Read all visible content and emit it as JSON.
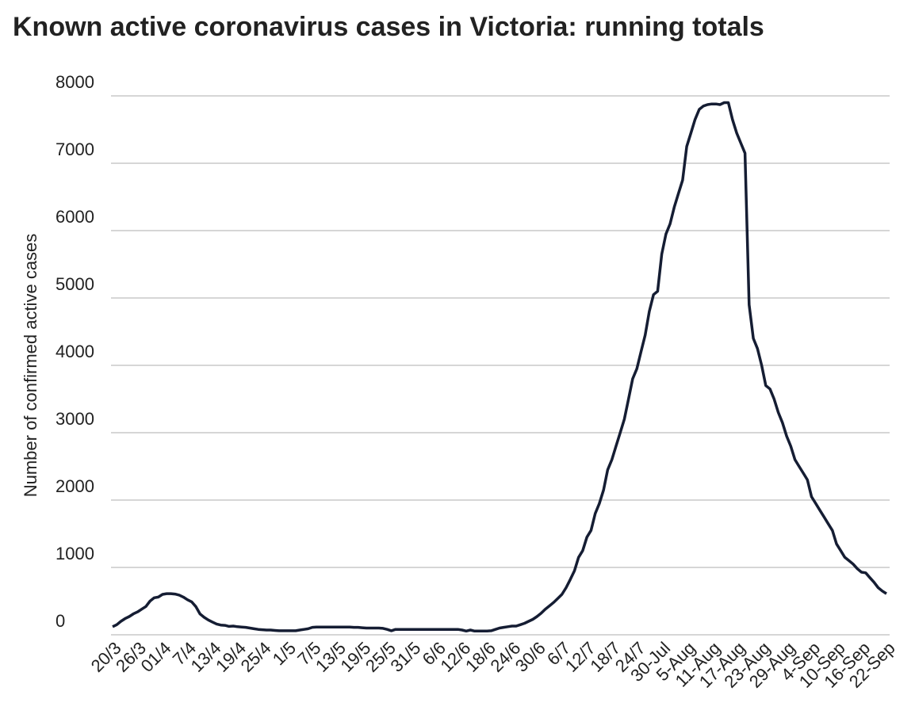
{
  "chart_data": {
    "type": "line",
    "title": "Known active coronavirus cases in Victoria: running totals",
    "y_label": "Number of confirmed active cases",
    "color": "#151d33",
    "grid": true,
    "ylim": [
      0,
      8000
    ],
    "yticks": [
      0,
      1000,
      2000,
      3000,
      4000,
      5000,
      6000,
      7000,
      8000
    ],
    "categories": [
      "20/3",
      null,
      null,
      null,
      null,
      null,
      "26/3",
      null,
      null,
      null,
      null,
      null,
      "01/4",
      null,
      null,
      null,
      null,
      null,
      "7/4",
      null,
      null,
      null,
      null,
      null,
      "13/4",
      null,
      null,
      null,
      null,
      null,
      "19/4",
      null,
      null,
      null,
      null,
      null,
      "25/4",
      null,
      null,
      null,
      null,
      null,
      "1/5",
      null,
      null,
      null,
      null,
      null,
      "7/5",
      null,
      null,
      null,
      null,
      null,
      "13/5",
      null,
      null,
      null,
      null,
      null,
      "19/5",
      null,
      null,
      null,
      null,
      null,
      "25/5",
      null,
      null,
      null,
      null,
      null,
      "31/5",
      null,
      null,
      null,
      null,
      null,
      "6/6",
      null,
      null,
      null,
      null,
      null,
      "12/6",
      null,
      null,
      null,
      null,
      null,
      "18/6",
      null,
      null,
      null,
      null,
      null,
      "24/6",
      null,
      null,
      null,
      null,
      null,
      "30/6",
      null,
      null,
      null,
      null,
      null,
      "6/7",
      null,
      null,
      null,
      null,
      null,
      "12/7",
      null,
      null,
      null,
      null,
      null,
      "18/7",
      null,
      null,
      null,
      null,
      null,
      "24/7",
      null,
      null,
      null,
      null,
      null,
      "30-Jul",
      null,
      null,
      null,
      null,
      null,
      "5-Aug",
      null,
      null,
      null,
      null,
      null,
      "11-Aug",
      null,
      null,
      null,
      null,
      null,
      "17-Aug",
      null,
      null,
      null,
      null,
      null,
      "23-Aug",
      null,
      null,
      null,
      null,
      null,
      "29-Aug",
      null,
      null,
      null,
      null,
      null,
      "4-Sep",
      null,
      null,
      null,
      null,
      null,
      "10-Sep",
      null,
      null,
      null,
      null,
      null,
      "16-Sep",
      null,
      null,
      null,
      null,
      null,
      "22-Sep"
    ],
    "values": [
      120,
      150,
      200,
      240,
      270,
      310,
      340,
      380,
      420,
      500,
      550,
      560,
      600,
      610,
      610,
      605,
      590,
      560,
      520,
      490,
      420,
      310,
      260,
      220,
      190,
      160,
      145,
      140,
      125,
      130,
      120,
      115,
      110,
      100,
      90,
      80,
      75,
      70,
      70,
      65,
      60,
      60,
      60,
      60,
      60,
      70,
      80,
      90,
      110,
      115,
      115,
      115,
      115,
      115,
      115,
      115,
      115,
      115,
      110,
      110,
      105,
      100,
      100,
      100,
      100,
      95,
      80,
      60,
      80,
      80,
      80,
      80,
      80,
      80,
      80,
      80,
      80,
      80,
      80,
      80,
      80,
      80,
      80,
      80,
      70,
      55,
      70,
      55,
      55,
      55,
      55,
      60,
      80,
      100,
      110,
      120,
      130,
      130,
      150,
      170,
      200,
      230,
      270,
      320,
      380,
      430,
      480,
      540,
      600,
      700,
      820,
      950,
      1150,
      1250,
      1450,
      1550,
      1800,
      1950,
      2150,
      2450,
      2600,
      2800,
      3000,
      3200,
      3500,
      3800,
      3950,
      4200,
      4450,
      4800,
      5050,
      5100,
      5650,
      5950,
      6100,
      6350,
      6550,
      6750,
      7250,
      7450,
      7650,
      7800,
      7850,
      7870,
      7880,
      7880,
      7870,
      7900,
      7900,
      7650,
      7450,
      7300,
      7150,
      4900,
      4400,
      4250,
      4000,
      3700,
      3650,
      3500,
      3300,
      3150,
      2950,
      2800,
      2600,
      2500,
      2400,
      2300,
      2050,
      1950,
      1850,
      1750,
      1650,
      1550,
      1350,
      1250,
      1150,
      1100,
      1050,
      980,
      930,
      920,
      850,
      780,
      700,
      650,
      610
    ]
  }
}
